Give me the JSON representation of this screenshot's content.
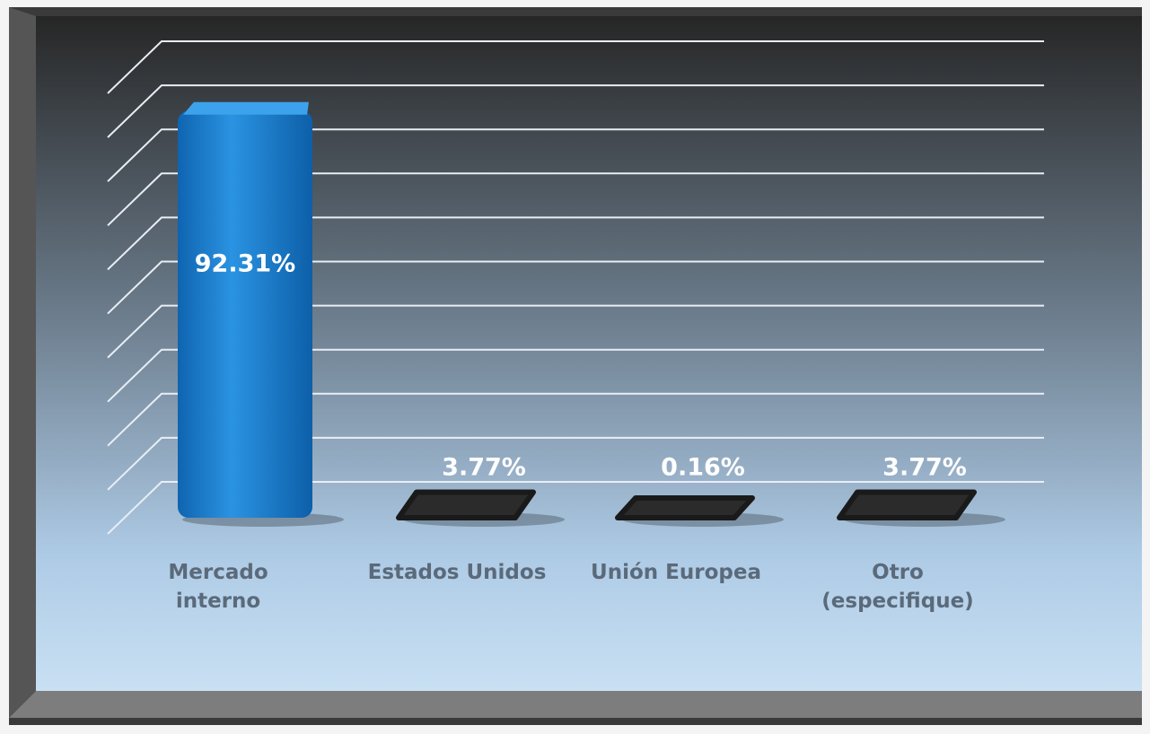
{
  "chart_data": {
    "type": "bar3d",
    "categories": [
      "Mercado interno",
      "Estados Unidos",
      "Unión Europea",
      "Otro (especifique)"
    ],
    "values": [
      92.31,
      3.77,
      0.16,
      3.77
    ],
    "value_labels": [
      "92.31%",
      "3.77%",
      "0.16%",
      "3.77%"
    ],
    "colors": [
      "#1a80d2",
      "#2b2b2b",
      "#2b2b2b",
      "#2b2b2b"
    ],
    "ylim": [
      0,
      100
    ],
    "yticks": [
      0,
      10,
      20,
      30,
      40,
      50,
      60,
      70,
      80,
      90,
      100
    ],
    "grid": true
  }
}
